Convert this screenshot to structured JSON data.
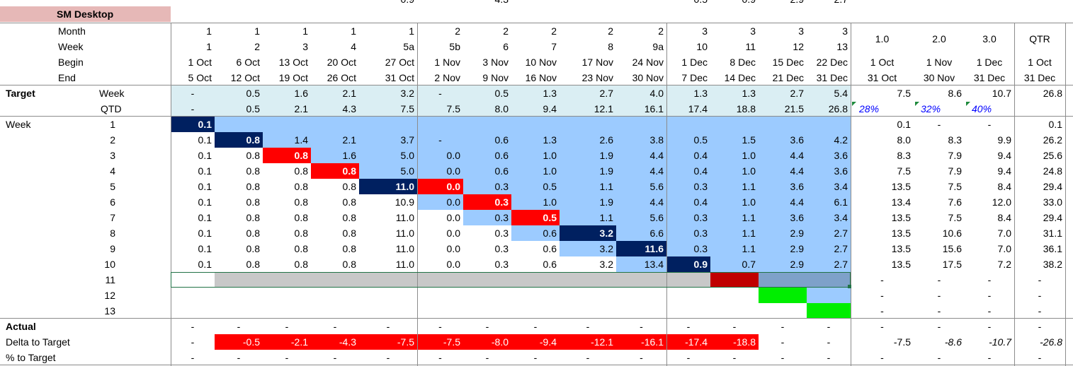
{
  "sheet_title": "SM Desktop",
  "top_partial": [
    "0.9",
    "4.3",
    "0.5",
    "0.9",
    "2.9",
    "2.7"
  ],
  "header": {
    "row_labels": [
      "Month",
      "Week",
      "Begin",
      "End"
    ],
    "month": [
      "1",
      "1",
      "1",
      "1",
      "1",
      "2",
      "2",
      "2",
      "2",
      "2",
      "3",
      "3",
      "3",
      "3"
    ],
    "week": [
      "1",
      "2",
      "3",
      "4",
      "5a",
      "5b",
      "6",
      "7",
      "8",
      "9a",
      "10",
      "11",
      "12",
      "13"
    ],
    "begin": [
      "1 Oct",
      "6 Oct",
      "13 Oct",
      "20 Oct",
      "27 Oct",
      "1 Nov",
      "3 Nov",
      "10 Nov",
      "17 Nov",
      "24 Nov",
      "1 Dec",
      "8 Dec",
      "15 Dec",
      "22 Dec"
    ],
    "end": [
      "5 Oct",
      "12 Oct",
      "19 Oct",
      "26 Oct",
      "31 Oct",
      "2 Nov",
      "9 Nov",
      "16 Nov",
      "23 Nov",
      "30 Nov",
      "7 Dec",
      "14 Dec",
      "21 Dec",
      "31 Dec"
    ],
    "summary_top": [
      "1.0",
      "2.0",
      "3.0",
      "QTR"
    ],
    "summary_begin": [
      "1 Oct",
      "1 Nov",
      "1 Dec",
      "1 Oct"
    ],
    "summary_end": [
      "31 Oct",
      "30 Nov",
      "31 Dec",
      "31 Dec"
    ]
  },
  "target": {
    "label": "Target",
    "week_label": "Week",
    "qtd_label": "QTD",
    "week": [
      "-",
      "0.5",
      "1.6",
      "2.1",
      "3.2",
      "-",
      "0.5",
      "1.3",
      "2.7",
      "4.0",
      "1.3",
      "1.3",
      "2.7",
      "5.4"
    ],
    "week_summary": [
      "7.5",
      "8.6",
      "10.7",
      "26.8"
    ],
    "qtd": [
      "-",
      "0.5",
      "2.1",
      "4.3",
      "7.5",
      "7.5",
      "8.0",
      "9.4",
      "12.1",
      "16.1",
      "17.4",
      "18.8",
      "21.5",
      "26.8"
    ],
    "qtd_summary": [
      "28%",
      "32%",
      "40%",
      ""
    ]
  },
  "weeks": {
    "label": "Week",
    "rows": [
      {
        "n": "1",
        "v": [
          "0.1",
          "",
          "",
          "",
          "",
          "",
          "",
          "",
          "",
          "",
          "",
          "",
          "",
          ""
        ],
        "s": [
          "0.1",
          "-",
          "-",
          "0.1"
        ]
      },
      {
        "n": "2",
        "v": [
          "0.1",
          "0.8",
          "1.4",
          "2.1",
          "3.7",
          "-",
          "0.6",
          "1.3",
          "2.6",
          "3.8",
          "0.5",
          "1.5",
          "3.6",
          "4.2"
        ],
        "s": [
          "8.0",
          "8.3",
          "9.9",
          "26.2"
        ]
      },
      {
        "n": "3",
        "v": [
          "0.1",
          "0.8",
          "0.8",
          "1.6",
          "5.0",
          "0.0",
          "0.6",
          "1.0",
          "1.9",
          "4.4",
          "0.4",
          "1.0",
          "4.4",
          "3.6"
        ],
        "s": [
          "8.3",
          "7.9",
          "9.4",
          "25.6"
        ]
      },
      {
        "n": "4",
        "v": [
          "0.1",
          "0.8",
          "0.8",
          "0.8",
          "5.0",
          "0.0",
          "0.6",
          "1.0",
          "1.9",
          "4.4",
          "0.4",
          "1.0",
          "4.4",
          "3.6"
        ],
        "s": [
          "7.5",
          "7.9",
          "9.4",
          "24.8"
        ]
      },
      {
        "n": "5",
        "v": [
          "0.1",
          "0.8",
          "0.8",
          "0.8",
          "11.0",
          "0.0",
          "0.3",
          "0.5",
          "1.1",
          "5.6",
          "0.3",
          "1.1",
          "3.6",
          "3.4"
        ],
        "s": [
          "13.5",
          "7.5",
          "8.4",
          "29.4"
        ]
      },
      {
        "n": "6",
        "v": [
          "0.1",
          "0.8",
          "0.8",
          "0.8",
          "10.9",
          "0.0",
          "0.3",
          "1.0",
          "1.9",
          "4.4",
          "0.4",
          "1.0",
          "4.4",
          "6.1"
        ],
        "s": [
          "13.4",
          "7.6",
          "12.0",
          "33.0"
        ]
      },
      {
        "n": "7",
        "v": [
          "0.1",
          "0.8",
          "0.8",
          "0.8",
          "11.0",
          "0.0",
          "0.3",
          "0.5",
          "1.1",
          "5.6",
          "0.3",
          "1.1",
          "3.6",
          "3.4"
        ],
        "s": [
          "13.5",
          "7.5",
          "8.4",
          "29.4"
        ]
      },
      {
        "n": "8",
        "v": [
          "0.1",
          "0.8",
          "0.8",
          "0.8",
          "11.0",
          "0.0",
          "0.3",
          "0.6",
          "3.2",
          "6.6",
          "0.3",
          "1.1",
          "2.9",
          "2.7"
        ],
        "s": [
          "13.5",
          "10.6",
          "7.0",
          "31.1"
        ]
      },
      {
        "n": "9",
        "v": [
          "0.1",
          "0.8",
          "0.8",
          "0.8",
          "11.0",
          "0.0",
          "0.3",
          "0.6",
          "3.2",
          "11.6",
          "0.3",
          "1.1",
          "2.9",
          "2.7"
        ],
        "s": [
          "13.5",
          "15.6",
          "7.0",
          "36.1"
        ]
      },
      {
        "n": "10",
        "v": [
          "0.1",
          "0.8",
          "0.8",
          "0.8",
          "11.0",
          "0.0",
          "0.3",
          "0.6",
          "3.2",
          "13.4",
          "0.9",
          "0.7",
          "2.9",
          "2.7"
        ],
        "s": [
          "13.5",
          "17.5",
          "7.2",
          "38.2"
        ]
      },
      {
        "n": "11",
        "v": [
          "",
          "",
          "",
          "",
          "",
          "",
          "",
          "",
          "",
          "",
          "",
          "",
          "",
          ""
        ],
        "s": [
          "-",
          "-",
          "-",
          "-"
        ]
      },
      {
        "n": "12",
        "v": [
          "",
          "",
          "",
          "",
          "",
          "",
          "",
          "",
          "",
          "",
          "",
          "",
          "",
          ""
        ],
        "s": [
          "-",
          "-",
          "-",
          "-"
        ]
      },
      {
        "n": "13",
        "v": [
          "",
          "",
          "",
          "",
          "",
          "",
          "",
          "",
          "",
          "",
          "",
          "",
          "",
          ""
        ],
        "s": [
          "-",
          "-",
          "-",
          "-"
        ]
      }
    ]
  },
  "actual": {
    "label": "Actual",
    "v": [
      "-",
      "-",
      "-",
      "-",
      "-",
      "-",
      "-",
      "-",
      "-",
      "-",
      "-",
      "-",
      "-",
      "-"
    ],
    "s": [
      "-",
      "-",
      "-",
      "-"
    ]
  },
  "delta": {
    "label": "Delta to Target",
    "v": [
      "-",
      "-0.5",
      "-2.1",
      "-4.3",
      "-7.5",
      "-7.5",
      "-8.0",
      "-9.4",
      "-12.1",
      "-16.1",
      "-17.4",
      "-18.8",
      "-",
      "-"
    ],
    "s": [
      "-7.5",
      "-8.6",
      "-10.7",
      "-26.8"
    ]
  },
  "pct": {
    "label": "% to Target",
    "v": [
      "-",
      "-",
      "-",
      "-",
      "-",
      "-",
      "-",
      "-",
      "-",
      "-",
      "-",
      "-",
      "-",
      "-"
    ],
    "s": [
      "-",
      "-",
      "-",
      "-"
    ]
  },
  "colors": {
    "light_blue": "#9ccbff",
    "target_bg": "#daeef3",
    "navy": "#002060",
    "red": "#ff0000",
    "dark_red": "#c00000",
    "gray": "#c8c8c8",
    "steel": "#7ea1c9",
    "green": "#00ee00",
    "title_bg": "#e6b8b7",
    "pct_blue": "#0000ff"
  }
}
